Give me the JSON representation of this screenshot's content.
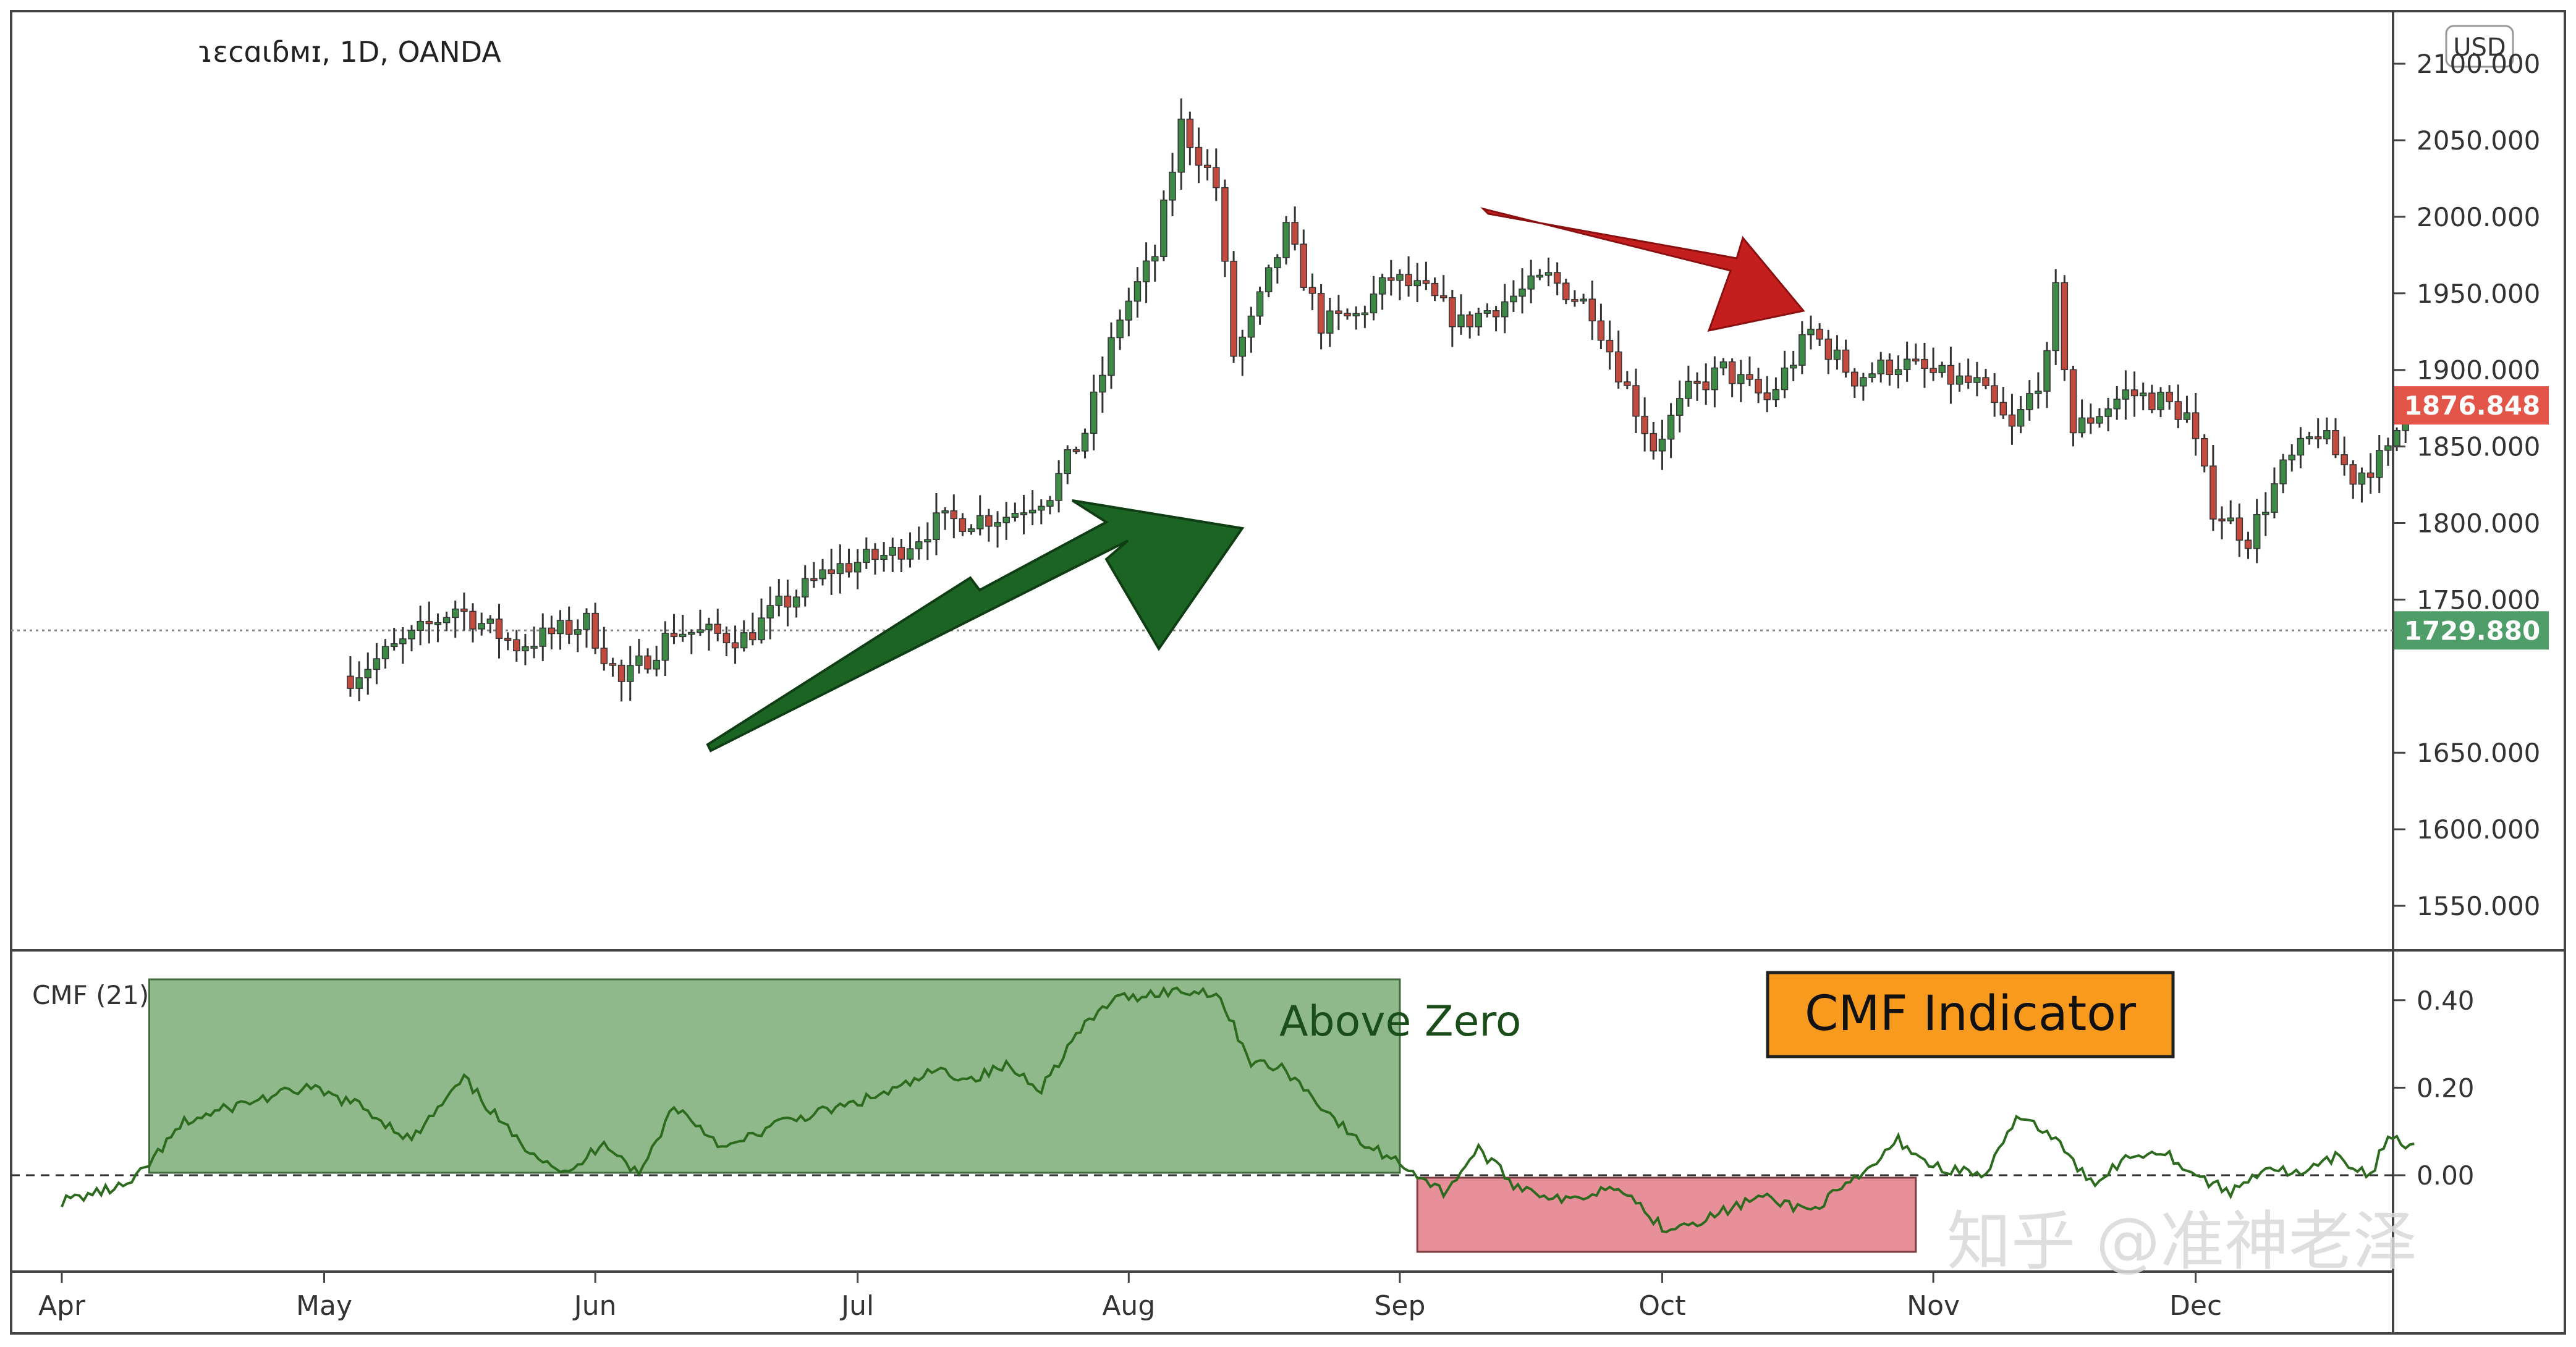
{
  "header": {
    "symbol_line": "ɿɛcɑɩɓᴍɪ, 1D, OANDA",
    "currency_button": "USD"
  },
  "price_axis": {
    "ticks": [
      {
        "value": 2100,
        "label": "2100.000"
      },
      {
        "value": 2050,
        "label": "2050.000"
      },
      {
        "value": 2000,
        "label": "2000.000"
      },
      {
        "value": 1950,
        "label": "1950.000"
      },
      {
        "value": 1900,
        "label": "1900.000"
      },
      {
        "value": 1850,
        "label": "1850.000"
      },
      {
        "value": 1800,
        "label": "1800.000"
      },
      {
        "value": 1750,
        "label": "1750.000"
      },
      {
        "value": 1650,
        "label": "1650.000"
      },
      {
        "value": 1600,
        "label": "1600.000"
      },
      {
        "value": 1550,
        "label": "1550.000"
      }
    ],
    "current_price": {
      "value": 1876.848,
      "label": "1876.848",
      "color": "#e45549"
    },
    "reference_price": {
      "value": 1729.88,
      "label": "1729.880",
      "color": "#4f9e6a"
    }
  },
  "cmf_axis": {
    "ticks": [
      {
        "value": 0.4,
        "label": "0.40"
      },
      {
        "value": 0.2,
        "label": "0.20"
      },
      {
        "value": 0.0,
        "label": "0.00"
      }
    ]
  },
  "cmf_pane": {
    "label": "CMF (21)",
    "above_zero_text": "Above Zero",
    "indicator_badge": "CMF Indicator",
    "badge_color": "#f79a1e",
    "above_color": "#8fb98a",
    "below_color": "#e8909a",
    "line_color": "#2c6a1e"
  },
  "time_axis": {
    "months": [
      {
        "label": "Apr",
        "day": 0
      },
      {
        "label": "May",
        "day": 30
      },
      {
        "label": "Jun",
        "day": 61
      },
      {
        "label": "Jul",
        "day": 91
      },
      {
        "label": "Aug",
        "day": 122
      },
      {
        "label": "Sep",
        "day": 153
      },
      {
        "label": "Oct",
        "day": 183
      },
      {
        "label": "Nov",
        "day": 214
      },
      {
        "label": "Dec",
        "day": 244
      }
    ]
  },
  "colors": {
    "up": "#3d8a46",
    "down": "#c24a3f",
    "green_arrow": "#1c6423",
    "red_arrow": "#c41e1e"
  },
  "watermark": "知乎 @准神老泽",
  "chart_data": {
    "type": "candlestick",
    "x_unit": "days since Apr 1",
    "price_anchors": [
      [
        33,
        1700
      ],
      [
        40,
        1725
      ],
      [
        45,
        1745
      ],
      [
        52,
        1720
      ],
      [
        60,
        1735
      ],
      [
        64,
        1695
      ],
      [
        70,
        1730
      ],
      [
        78,
        1725
      ],
      [
        82,
        1745
      ],
      [
        88,
        1770
      ],
      [
        95,
        1780
      ],
      [
        100,
        1800
      ],
      [
        108,
        1805
      ],
      [
        113,
        1820
      ],
      [
        117,
        1860
      ],
      [
        121,
        1935
      ],
      [
        125,
        1975
      ],
      [
        128,
        2060
      ],
      [
        132,
        2020
      ],
      [
        134,
        1910
      ],
      [
        136,
        1930
      ],
      [
        140,
        1990
      ],
      [
        144,
        1930
      ],
      [
        148,
        1935
      ],
      [
        152,
        1960
      ],
      [
        156,
        1950
      ],
      [
        160,
        1930
      ],
      [
        165,
        1945
      ],
      [
        170,
        1960
      ],
      [
        175,
        1940
      ],
      [
        178,
        1900
      ],
      [
        182,
        1850
      ],
      [
        186,
        1885
      ],
      [
        190,
        1900
      ],
      [
        195,
        1880
      ],
      [
        200,
        1925
      ],
      [
        205,
        1895
      ],
      [
        210,
        1905
      ],
      [
        215,
        1895
      ],
      [
        219,
        1890
      ],
      [
        223,
        1860
      ],
      [
        227,
        1905
      ],
      [
        228,
        1950
      ],
      [
        230,
        1860
      ],
      [
        236,
        1885
      ],
      [
        240,
        1880
      ],
      [
        243,
        1870
      ],
      [
        246,
        1810
      ],
      [
        250,
        1790
      ],
      [
        254,
        1835
      ],
      [
        258,
        1860
      ],
      [
        262,
        1830
      ],
      [
        266,
        1845
      ],
      [
        268,
        1877
      ]
    ],
    "cmf_anchors": [
      [
        0,
        -0.06
      ],
      [
        8,
        -0.02
      ],
      [
        14,
        0.12
      ],
      [
        20,
        0.16
      ],
      [
        28,
        0.2
      ],
      [
        34,
        0.16
      ],
      [
        40,
        0.08
      ],
      [
        46,
        0.22
      ],
      [
        52,
        0.08
      ],
      [
        58,
        0.0
      ],
      [
        62,
        0.08
      ],
      [
        66,
        0.0
      ],
      [
        70,
        0.16
      ],
      [
        76,
        0.06
      ],
      [
        82,
        0.12
      ],
      [
        90,
        0.16
      ],
      [
        96,
        0.2
      ],
      [
        100,
        0.24
      ],
      [
        104,
        0.22
      ],
      [
        108,
        0.25
      ],
      [
        112,
        0.2
      ],
      [
        116,
        0.32
      ],
      [
        120,
        0.4
      ],
      [
        126,
        0.42
      ],
      [
        132,
        0.42
      ],
      [
        136,
        0.26
      ],
      [
        140,
        0.24
      ],
      [
        144,
        0.16
      ],
      [
        148,
        0.08
      ],
      [
        153,
        0.03
      ],
      [
        158,
        -0.04
      ],
      [
        162,
        0.06
      ],
      [
        166,
        -0.02
      ],
      [
        172,
        -0.06
      ],
      [
        178,
        -0.02
      ],
      [
        183,
        -0.12
      ],
      [
        188,
        -0.1
      ],
      [
        194,
        -0.05
      ],
      [
        200,
        -0.08
      ],
      [
        206,
        0.0
      ],
      [
        210,
        0.08
      ],
      [
        214,
        0.02
      ],
      [
        220,
        0.0
      ],
      [
        224,
        0.14
      ],
      [
        228,
        0.08
      ],
      [
        232,
        -0.02
      ],
      [
        236,
        0.04
      ],
      [
        240,
        0.06
      ],
      [
        244,
        0.0
      ],
      [
        248,
        -0.04
      ],
      [
        252,
        0.02
      ],
      [
        256,
        0.0
      ],
      [
        260,
        0.04
      ],
      [
        264,
        0.0
      ],
      [
        266,
        0.09
      ],
      [
        269,
        0.06
      ]
    ]
  }
}
